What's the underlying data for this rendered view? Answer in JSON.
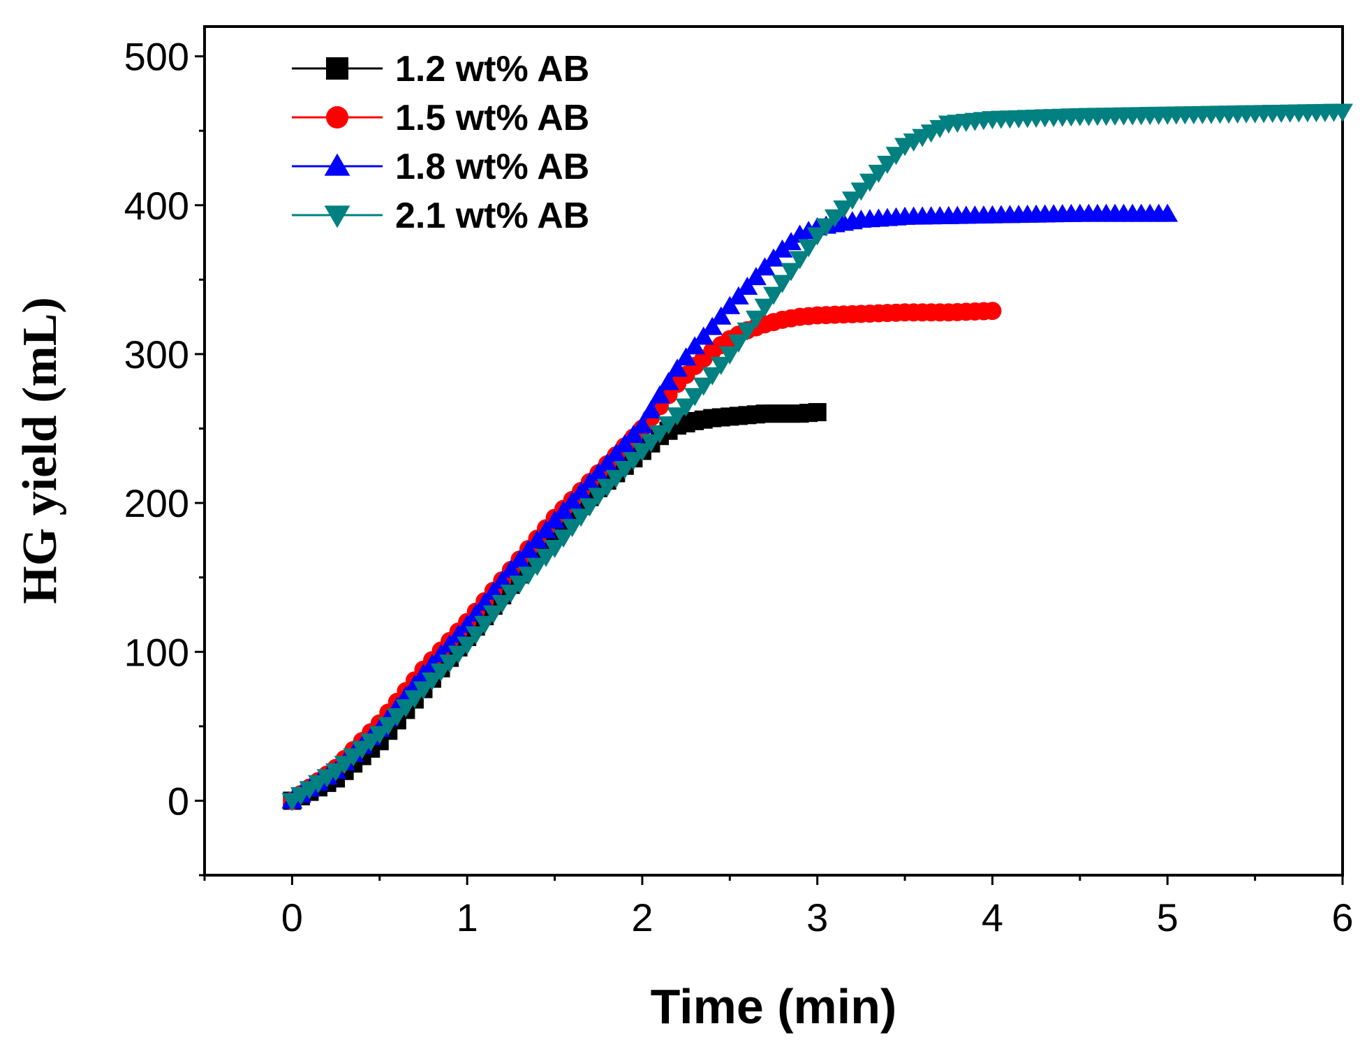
{
  "chart_data": {
    "type": "line",
    "title": "",
    "xlabel": "Time (min)",
    "ylabel": "HG yield (mL)",
    "xlim": [
      -0.5,
      6
    ],
    "ylim": [
      -50,
      520
    ],
    "xticks": [
      0,
      1,
      2,
      3,
      4,
      5,
      6
    ],
    "xtick_labels": [
      "0",
      "1",
      "2",
      "3",
      "4",
      "5",
      "6"
    ],
    "yticks": [
      0,
      100,
      200,
      300,
      400,
      500
    ],
    "ytick_labels": [
      "0",
      "100",
      "200",
      "300",
      "400",
      "500"
    ],
    "grid": false,
    "legend_position": "top-left",
    "series": [
      {
        "name": "1.2 wt% AB",
        "color": "#000000",
        "marker": "square",
        "x": [
          0,
          0.25,
          0.5,
          0.75,
          1.0,
          1.25,
          1.5,
          1.75,
          2.0,
          2.1,
          2.2,
          2.3,
          2.4,
          2.5,
          2.6,
          2.7,
          2.8,
          2.9,
          3.0
        ],
        "y": [
          0,
          15,
          40,
          75,
          110,
          145,
          180,
          210,
          235,
          245,
          252,
          255,
          257,
          258,
          259,
          260,
          260,
          260,
          261
        ]
      },
      {
        "name": "1.5 wt% AB",
        "color": "#ff0000",
        "marker": "circle",
        "x": [
          0,
          0.25,
          0.5,
          0.75,
          1.0,
          1.25,
          1.5,
          1.75,
          2.0,
          2.1,
          2.2,
          2.3,
          2.4,
          2.5,
          2.6,
          2.7,
          2.8,
          2.9,
          3.0,
          3.25,
          3.5,
          3.75,
          4.0
        ],
        "y": [
          0,
          22,
          52,
          88,
          120,
          155,
          190,
          220,
          250,
          265,
          280,
          292,
          302,
          310,
          316,
          320,
          323,
          325,
          326,
          327,
          328,
          328,
          329
        ]
      },
      {
        "name": "1.8 wt% AB",
        "color": "#0000ff",
        "marker": "triangle-up",
        "x": [
          0,
          0.25,
          0.5,
          0.75,
          1.0,
          1.25,
          1.5,
          1.75,
          2.0,
          2.1,
          2.2,
          2.3,
          2.4,
          2.5,
          2.6,
          2.7,
          2.8,
          2.9,
          3.0,
          3.25,
          3.5,
          4.0,
          4.5,
          5.0
        ],
        "y": [
          0,
          20,
          48,
          85,
          118,
          155,
          188,
          220,
          252,
          272,
          290,
          305,
          318,
          332,
          345,
          358,
          370,
          380,
          385,
          390,
          392,
          393,
          394,
          394
        ]
      },
      {
        "name": "2.1 wt% AB",
        "color": "#008080",
        "marker": "triangle-down",
        "x": [
          0,
          0.25,
          0.5,
          0.75,
          1.0,
          1.25,
          1.5,
          1.75,
          2.0,
          2.25,
          2.5,
          2.75,
          3.0,
          3.25,
          3.5,
          3.75,
          4.0,
          4.5,
          5.0,
          5.5,
          6.0
        ],
        "y": [
          0,
          20,
          45,
          75,
          105,
          140,
          170,
          205,
          235,
          265,
          300,
          340,
          380,
          410,
          440,
          455,
          458,
          460,
          461,
          462,
          463
        ]
      }
    ]
  }
}
